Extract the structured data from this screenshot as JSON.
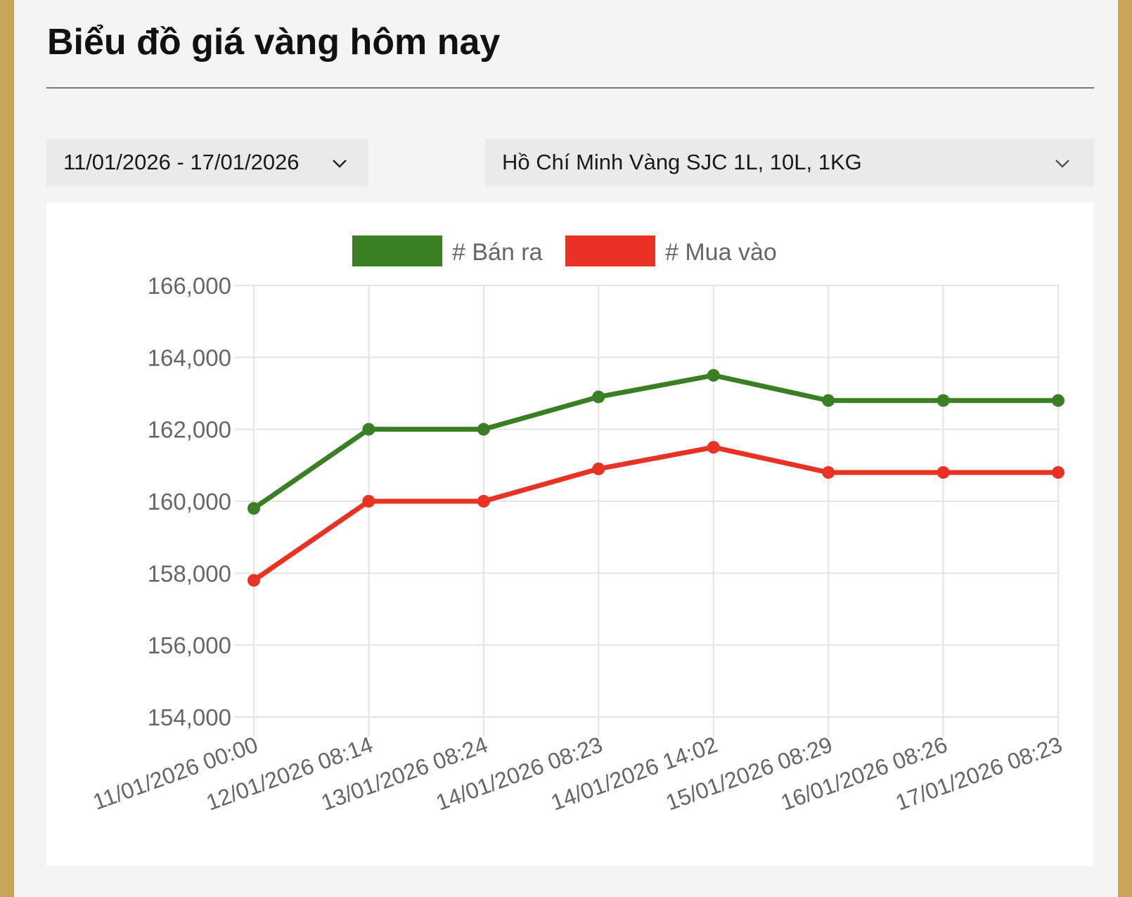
{
  "page": {
    "title": "Biểu đồ giá vàng hôm nay"
  },
  "filters": {
    "date_range": "11/01/2026 - 17/01/2026",
    "location_product": "Hồ Chí Minh Vàng SJC 1L, 10L, 1KG"
  },
  "icons": {
    "dropdown": "chevron-down-icon"
  },
  "colors": {
    "sell": "#3a7f23",
    "buy": "#e83324",
    "grid": "#e3e3e3",
    "accent_border": "#c9a55a"
  },
  "chart_data": {
    "type": "line",
    "title": "",
    "xlabel": "",
    "ylabel": "",
    "legend_position": "top-center",
    "grid": true,
    "ylim": [
      154000,
      166000
    ],
    "yticks": [
      166000,
      164000,
      162000,
      160000,
      158000,
      156000,
      154000
    ],
    "ytick_labels": [
      "166,000",
      "164,000",
      "162,000",
      "160,000",
      "158,000",
      "156,000",
      "154,000"
    ],
    "categories": [
      "11/01/2026 00:00",
      "12/01/2026 08:14",
      "13/01/2026 08:24",
      "14/01/2026 08:23",
      "14/01/2026 14:02",
      "15/01/2026 08:29",
      "16/01/2026 08:26",
      "17/01/2026 08:23"
    ],
    "series": [
      {
        "name": "# Bán ra",
        "color": "#3a7f23",
        "values": [
          159800,
          162000,
          162000,
          162900,
          163500,
          162800,
          162800,
          162800
        ]
      },
      {
        "name": "# Mua vào",
        "color": "#e83324",
        "values": [
          157800,
          160000,
          160000,
          160900,
          161500,
          160800,
          160800,
          160800
        ]
      }
    ]
  }
}
